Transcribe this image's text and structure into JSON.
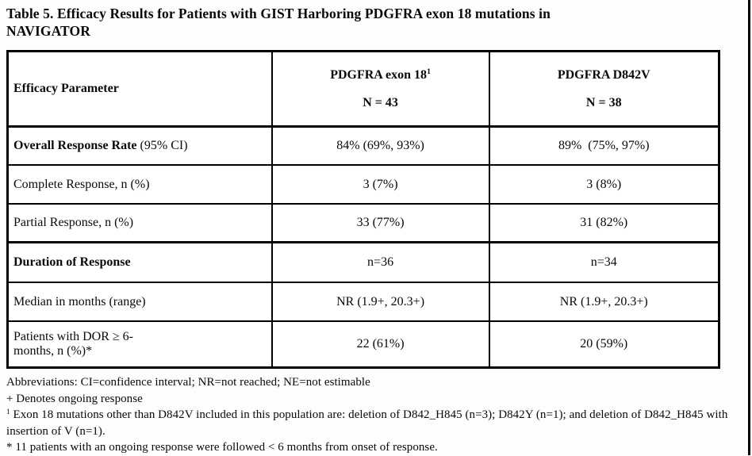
{
  "colors": {
    "text": "#0a0a0a",
    "background": "#ffffff",
    "table_border": "#000000"
  },
  "title": "Table 5. Efficacy Results for Patients with GIST Harboring PDGFRA exon 18 mutations in\nNAVIGATOR",
  "table": {
    "header": {
      "param_label": "Efficacy Parameter",
      "exon18": {
        "label": "PDGFRA exon 18",
        "sup": "1",
        "n": "N = 43"
      },
      "d842v": {
        "label": "PDGFRA D842V",
        "sup": "",
        "n": "N = 38"
      }
    },
    "rows": [
      {
        "param_bold": "Overall Response Rate",
        "param_rest": " (95% CI)",
        "exon18": "84% (69%, 93%)",
        "d842v": "89%  (75%, 97%)"
      },
      {
        "param": "Complete Response, n (%)",
        "exon18": "3 (7%)",
        "d842v": "3 (8%)"
      },
      {
        "param": "Partial Response, n (%)",
        "exon18": "33 (77%)",
        "d842v": "31 (82%)"
      },
      {
        "param_bold": "Duration of Response",
        "param_rest": "",
        "exon18": "n=36",
        "d842v": "n=34"
      },
      {
        "param": "Median in months (range)",
        "exon18": "NR (1.9+, 20.3+)",
        "d842v": "NR (1.9+, 20.3+)"
      },
      {
        "param": "Patients with DOR ≥ 6-\nmonths, n (%)*",
        "exon18": "22 (61%)",
        "d842v": "20 (59%)"
      }
    ]
  },
  "footnotes": {
    "abbreviations": "Abbreviations: CI=confidence interval; NR=not reached; NE=not estimable",
    "plus_note": "+ Denotes ongoing response",
    "exon18_note": {
      "sup": "1",
      "text": " Exon 18 mutations other than D842V included in this population are: deletion of D842_H845 (n=3); D842Y (n=1); and deletion of D842_H845 with insertion of V (n=1)."
    },
    "asterisk_note": "* 11 patients with an ongoing response were followed < 6 months from onset of response."
  }
}
